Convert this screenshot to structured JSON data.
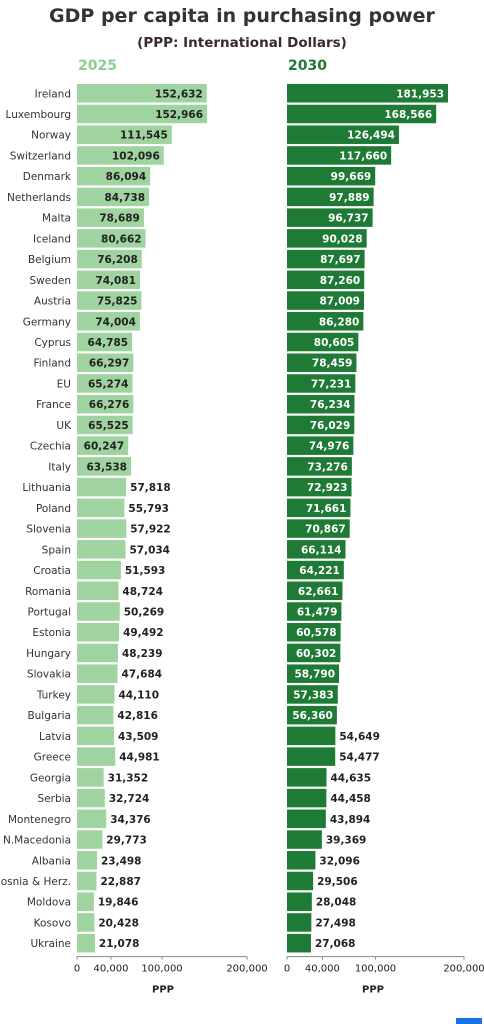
{
  "title": "GDP per capita in purchasing power",
  "subtitle": "(PPP: International Dollars)",
  "colors": {
    "bar_2025": "#9fd39f",
    "bar_2030": "#1e7a34",
    "label_2025": "#8ccf8c",
    "label_2030": "#1e7a34"
  },
  "chart_data": [
    {
      "type": "bar",
      "orientation": "horizontal",
      "panel_label": "2025",
      "categories": [
        "Ireland",
        "Luxembourg",
        "Norway",
        "Switzerland",
        "Denmark",
        "Netherlands",
        "Malta",
        "Iceland",
        "Belgium",
        "Sweden",
        "Austria",
        "Germany",
        "Cyprus",
        "Finland",
        "EU",
        "France",
        "UK",
        "Czechia",
        "Italy",
        "Lithuania",
        "Poland",
        "Slovenia",
        "Spain",
        "Croatia",
        "Romania",
        "Portugal",
        "Estonia",
        "Hungary",
        "Slovakia",
        "Turkey",
        "Bulgaria",
        "Latvia",
        "Greece",
        "Georgia",
        "Serbia",
        "Montenegro",
        "N.Macedonia",
        "Albania",
        "Bosnia & Herz.",
        "Moldova",
        "Kosovo",
        "Ukraine"
      ],
      "values": [
        152632,
        152966,
        111545,
        102096,
        86094,
        84738,
        78689,
        80662,
        76208,
        74081,
        75825,
        74004,
        64785,
        66297,
        65274,
        66276,
        65525,
        60247,
        63538,
        57818,
        55793,
        57922,
        57034,
        51593,
        48724,
        50269,
        49492,
        48239,
        47684,
        44110,
        42816,
        43509,
        44981,
        31352,
        32724,
        34376,
        29773,
        23498,
        22887,
        19846,
        20428,
        21078
      ],
      "value_labels": [
        "152,632",
        "152,966",
        "111,545",
        "102,096",
        "86,094",
        "84,738",
        "78,689",
        "80,662",
        "76,208",
        "74,081",
        "75,825",
        "74,004",
        "64,785",
        "66,297",
        "65,274",
        "66,276",
        "65,525",
        "60,247",
        "63,538",
        "57,818",
        "55,793",
        "57,922",
        "57,034",
        "51,593",
        "48,724",
        "50,269",
        "49,492",
        "48,239",
        "47,684",
        "44,110",
        "42,816",
        "43,509",
        "44,981",
        "31,352",
        "32,724",
        "34,376",
        "29,773",
        "23,498",
        "22,887",
        "19,846",
        "20,428",
        "21,078"
      ],
      "xlim": [
        0,
        200000
      ],
      "xticks": [
        "0",
        "40,000",
        "100,000",
        "200,000"
      ],
      "xtick_values": [
        0,
        40000,
        100000,
        200000
      ],
      "xlabel": "PPP"
    },
    {
      "type": "bar",
      "orientation": "horizontal",
      "panel_label": "2030",
      "categories": [
        "Ireland",
        "Luxembourg",
        "Norway",
        "Switzerland",
        "Denmark",
        "Netherlands",
        "Malta",
        "Iceland",
        "Belgium",
        "Sweden",
        "Austria",
        "Germany",
        "Cyprus",
        "Finland",
        "EU",
        "France",
        "UK",
        "Czechia",
        "Italy",
        "Lithuania",
        "Poland",
        "Slovenia",
        "Spain",
        "Croatia",
        "Romania",
        "Portugal",
        "Estonia",
        "Hungary",
        "Slovakia",
        "Turkey",
        "Bulgaria",
        "Latvia",
        "Greece",
        "Georgia",
        "Serbia",
        "Montenegro",
        "N.Macedonia",
        "Albania",
        "Bosnia & Herz.",
        "Moldova",
        "Kosovo",
        "Ukraine"
      ],
      "values": [
        181953,
        168566,
        126494,
        117660,
        99669,
        97889,
        96737,
        90028,
        87697,
        87260,
        87009,
        86280,
        80605,
        78459,
        77231,
        76234,
        76029,
        74976,
        73276,
        72923,
        71661,
        70867,
        66114,
        64221,
        62661,
        61479,
        60578,
        60302,
        58790,
        57383,
        56360,
        54649,
        54477,
        44635,
        44458,
        43894,
        39369,
        32096,
        29506,
        28048,
        27498,
        27068
      ],
      "value_labels": [
        "181,953",
        "168,566",
        "126,494",
        "117,660",
        "99,669",
        "97,889",
        "96,737",
        "90,028",
        "87,697",
        "87,260",
        "87,009",
        "86,280",
        "80,605",
        "78,459",
        "77,231",
        "76,234",
        "76,029",
        "74,976",
        "73,276",
        "72,923",
        "71,661",
        "70,867",
        "66,114",
        "64,221",
        "62,661",
        "61,479",
        "60,578",
        "60,302",
        "58,790",
        "57,383",
        "56,360",
        "54,649",
        "54,477",
        "44,635",
        "44,458",
        "43,894",
        "39,369",
        "32,096",
        "29,506",
        "28,048",
        "27,498",
        "27,068"
      ],
      "xlim": [
        0,
        200000
      ],
      "xticks": [
        "0",
        "40,000",
        "100,000",
        "200,000"
      ],
      "xtick_values": [
        0,
        40000,
        100000,
        200000
      ],
      "xlabel": "PPP"
    }
  ]
}
